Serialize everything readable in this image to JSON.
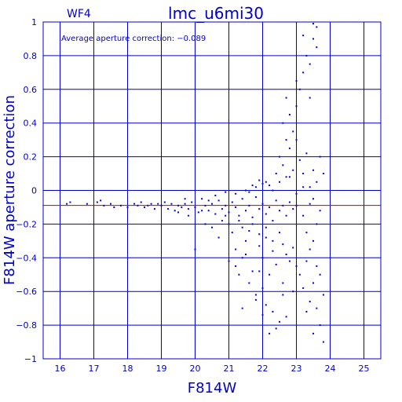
{
  "colors": {
    "axis": "#0000cc",
    "grid": "#0000cc",
    "points": "#0000ee",
    "reference_line": "#cc0000",
    "background": "#ffffff"
  },
  "chart_data": {
    "type": "scatter",
    "title": "lmc_u6mi30",
    "chip_label": "WF4",
    "annotation": "Average aperture correction: −0.089",
    "xlabel": "F814W",
    "ylabel": "F814W aperture correction",
    "xlim": [
      15.5,
      25.5
    ],
    "ylim": [
      -1,
      1
    ],
    "x_ticks": [
      16,
      17,
      18,
      19,
      20,
      21,
      22,
      23,
      24,
      25
    ],
    "x_tick_labels": [
      "16",
      "17",
      "18",
      "19",
      "20",
      "21",
      "22",
      "23",
      "24",
      "25"
    ],
    "y_ticks": [
      -1,
      -0.8,
      -0.6,
      -0.4,
      -0.2,
      0,
      0.2,
      0.4,
      0.6,
      0.8,
      1
    ],
    "y_tick_labels": [
      "−1",
      "−0.8",
      "−0.6",
      "−0.4",
      "−0.2",
      "0",
      "0.2",
      "0.4",
      "0.6",
      "0.8",
      "1"
    ],
    "grid": true,
    "reference_line_y": -0.089,
    "points": [
      [
        16.2,
        -0.08
      ],
      [
        16.3,
        -0.07
      ],
      [
        16.8,
        -0.08
      ],
      [
        17.1,
        -0.07
      ],
      [
        17.2,
        -0.06
      ],
      [
        17.3,
        -0.09
      ],
      [
        17.5,
        -0.08
      ],
      [
        17.6,
        -0.1
      ],
      [
        17.8,
        -0.09
      ],
      [
        18.0,
        -0.1
      ],
      [
        18.2,
        -0.08
      ],
      [
        18.3,
        -0.09
      ],
      [
        18.4,
        -0.07
      ],
      [
        18.5,
        -0.1
      ],
      [
        18.6,
        -0.09
      ],
      [
        18.7,
        -0.08
      ],
      [
        18.8,
        -0.11
      ],
      [
        18.9,
        -0.08
      ],
      [
        19.0,
        -0.09
      ],
      [
        19.1,
        -0.07
      ],
      [
        19.2,
        -0.11
      ],
      [
        19.3,
        -0.08
      ],
      [
        19.4,
        -0.12
      ],
      [
        19.5,
        -0.09
      ],
      [
        19.6,
        -0.1
      ],
      [
        19.7,
        -0.08
      ],
      [
        19.8,
        -0.11
      ],
      [
        19.9,
        -0.07
      ],
      [
        20.0,
        -0.1
      ],
      [
        20.1,
        -0.13
      ],
      [
        20.2,
        -0.05
      ],
      [
        20.3,
        -0.09
      ],
      [
        20.4,
        -0.12
      ],
      [
        20.5,
        -0.08
      ],
      [
        20.6,
        -0.14
      ],
      [
        20.7,
        -0.06
      ],
      [
        20.8,
        -0.11
      ],
      [
        20.9,
        -0.09
      ],
      [
        21.0,
        -0.13
      ],
      [
        21.1,
        -0.07
      ],
      [
        21.2,
        -0.1
      ],
      [
        21.3,
        -0.15
      ],
      [
        21.4,
        -0.05
      ],
      [
        21.5,
        -0.12
      ],
      [
        21.6,
        -0.09
      ],
      [
        21.7,
        -0.16
      ],
      [
        21.8,
        -0.04
      ],
      [
        21.9,
        -0.11
      ],
      [
        22.0,
        -0.08
      ],
      [
        22.1,
        -0.14
      ],
      [
        22.2,
        -0.1
      ],
      [
        22.3,
        -0.18
      ],
      [
        22.4,
        -0.06
      ],
      [
        22.5,
        -0.12
      ],
      [
        22.6,
        -0.09
      ],
      [
        22.7,
        -0.15
      ],
      [
        22.8,
        -0.07
      ],
      [
        22.9,
        -0.11
      ],
      [
        23.0,
        -0.09
      ],
      [
        20.6,
        -0.03
      ],
      [
        20.8,
        -0.18
      ],
      [
        21.0,
        -0.2
      ],
      [
        21.2,
        -0.02
      ],
      [
        21.4,
        -0.22
      ],
      [
        21.5,
        0.0
      ],
      [
        21.6,
        -0.24
      ],
      [
        21.8,
        0.02
      ],
      [
        21.9,
        -0.26
      ],
      [
        22.0,
        0.04
      ],
      [
        22.1,
        -0.28
      ],
      [
        22.2,
        0.03
      ],
      [
        22.3,
        -0.3
      ],
      [
        22.5,
        0.05
      ],
      [
        22.6,
        -0.32
      ],
      [
        22.8,
        0.08
      ],
      [
        22.9,
        -0.34
      ],
      [
        20.5,
        -0.22
      ],
      [
        20.7,
        -0.28
      ],
      [
        20.9,
        -0.15
      ],
      [
        21.1,
        -0.25
      ],
      [
        21.3,
        -0.18
      ],
      [
        21.5,
        -0.3
      ],
      [
        21.7,
        -0.2
      ],
      [
        21.9,
        -0.33
      ],
      [
        22.1,
        -0.22
      ],
      [
        22.3,
        -0.36
      ],
      [
        22.5,
        -0.25
      ],
      [
        22.7,
        -0.38
      ],
      [
        20.0,
        -0.35
      ],
      [
        19.8,
        -0.15
      ],
      [
        20.3,
        -0.2
      ],
      [
        21.0,
        -0.42
      ],
      [
        21.2,
        -0.45
      ],
      [
        21.5,
        -0.38
      ],
      [
        21.7,
        -0.48
      ],
      [
        22.0,
        -0.4
      ],
      [
        22.2,
        -0.5
      ],
      [
        22.4,
        -0.44
      ],
      [
        22.6,
        -0.55
      ],
      [
        22.8,
        -0.42
      ],
      [
        21.6,
        -0.55
      ],
      [
        21.8,
        -0.62
      ],
      [
        22.0,
        -0.58
      ],
      [
        21.3,
        -0.5
      ],
      [
        21.4,
        -0.7
      ],
      [
        21.8,
        -0.65
      ],
      [
        22.1,
        -0.68
      ],
      [
        22.3,
        -0.72
      ],
      [
        22.5,
        -0.78
      ],
      [
        22.2,
        -0.85
      ],
      [
        22.4,
        -0.82
      ],
      [
        22.7,
        -0.75
      ],
      [
        22.0,
        -0.74
      ],
      [
        21.2,
        -0.35
      ],
      [
        21.4,
        -0.4
      ],
      [
        22.6,
        -0.62
      ],
      [
        22.9,
        -0.6
      ],
      [
        21.9,
        -0.48
      ],
      [
        22.4,
        0.1
      ],
      [
        22.5,
        0.2
      ],
      [
        22.6,
        0.15
      ],
      [
        22.7,
        0.3
      ],
      [
        22.8,
        0.25
      ],
      [
        22.9,
        0.35
      ],
      [
        22.6,
        0.4
      ],
      [
        22.8,
        0.45
      ],
      [
        23.0,
        0.5
      ],
      [
        22.7,
        0.55
      ],
      [
        23.0,
        0.65
      ],
      [
        23.2,
        0.7
      ],
      [
        23.1,
        0.6
      ],
      [
        23.3,
        0.8
      ],
      [
        23.4,
        0.75
      ],
      [
        23.5,
        0.9
      ],
      [
        23.2,
        0.92
      ],
      [
        23.6,
        0.97
      ],
      [
        23.5,
        0.99
      ],
      [
        23.6,
        0.85
      ],
      [
        23.4,
        0.55
      ],
      [
        23.0,
        0.3
      ],
      [
        23.1,
        0.18
      ],
      [
        23.2,
        0.1
      ],
      [
        23.3,
        0.22
      ],
      [
        23.5,
        0.12
      ],
      [
        23.6,
        0.05
      ],
      [
        23.7,
        0.2
      ],
      [
        23.4,
        0.02
      ],
      [
        22.9,
        0.12
      ],
      [
        22.7,
        0.08
      ],
      [
        23.8,
        0.1
      ],
      [
        23.2,
        -0.15
      ],
      [
        23.3,
        -0.25
      ],
      [
        23.4,
        -0.35
      ],
      [
        23.5,
        -0.3
      ],
      [
        23.6,
        -0.45
      ],
      [
        23.7,
        -0.5
      ],
      [
        23.5,
        -0.55
      ],
      [
        23.8,
        -0.62
      ],
      [
        23.6,
        -0.7
      ],
      [
        23.3,
        -0.72
      ],
      [
        23.7,
        -0.8
      ],
      [
        23.5,
        -0.85
      ],
      [
        23.8,
        -0.9
      ],
      [
        23.4,
        -0.66
      ],
      [
        23.2,
        -0.58
      ],
      [
        23.0,
        -0.45
      ],
      [
        23.1,
        -0.5
      ],
      [
        23.3,
        -0.42
      ],
      [
        23.6,
        -0.2
      ],
      [
        23.7,
        -0.12
      ],
      [
        23.4,
        -0.08
      ],
      [
        23.2,
        0.02
      ],
      [
        23.0,
        -0.02
      ],
      [
        23.5,
        -0.05
      ],
      [
        22.3,
        0.0
      ],
      [
        22.1,
        0.05
      ],
      [
        21.9,
        0.06
      ],
      [
        21.7,
        0.03
      ],
      [
        21.6,
        -0.01
      ],
      [
        20.4,
        -0.06
      ],
      [
        20.2,
        -0.12
      ],
      [
        19.5,
        -0.13
      ],
      [
        19.7,
        -0.05
      ],
      [
        20.9,
        -0.01
      ]
    ]
  }
}
